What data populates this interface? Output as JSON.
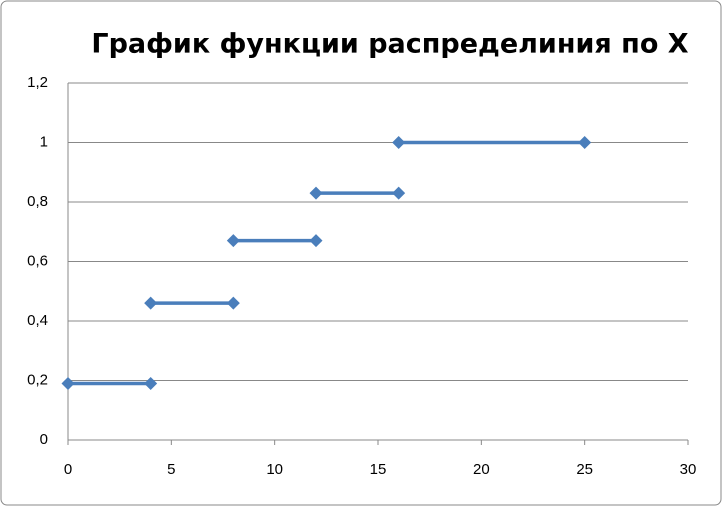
{
  "chart_data": {
    "type": "step-segments",
    "title": "График функции распределиния по Х",
    "color": "#4a7ebb",
    "series": [
      {
        "x": [
          0,
          4
        ],
        "values": [
          0.19,
          0.19
        ]
      },
      {
        "x": [
          4,
          8
        ],
        "values": [
          0.46,
          0.46
        ]
      },
      {
        "x": [
          8,
          12
        ],
        "values": [
          0.67,
          0.67
        ]
      },
      {
        "x": [
          12,
          16
        ],
        "values": [
          0.83,
          0.83
        ]
      },
      {
        "x": [
          16,
          25
        ],
        "values": [
          1,
          1
        ]
      }
    ],
    "xlim": [
      0,
      30
    ],
    "xticks": [
      0,
      5,
      10,
      15,
      20,
      25,
      30
    ],
    "ylim": [
      0,
      1.2
    ],
    "yticks": [
      0,
      {
        "value": 0.2,
        "label": "0,2"
      },
      {
        "value": 0.4,
        "label": "0,4"
      },
      {
        "value": 0.6,
        "label": "0,6"
      },
      {
        "value": 0.8,
        "label": "0,8"
      },
      1,
      {
        "value": 1.2,
        "label": "1,2"
      }
    ],
    "grid": true
  }
}
